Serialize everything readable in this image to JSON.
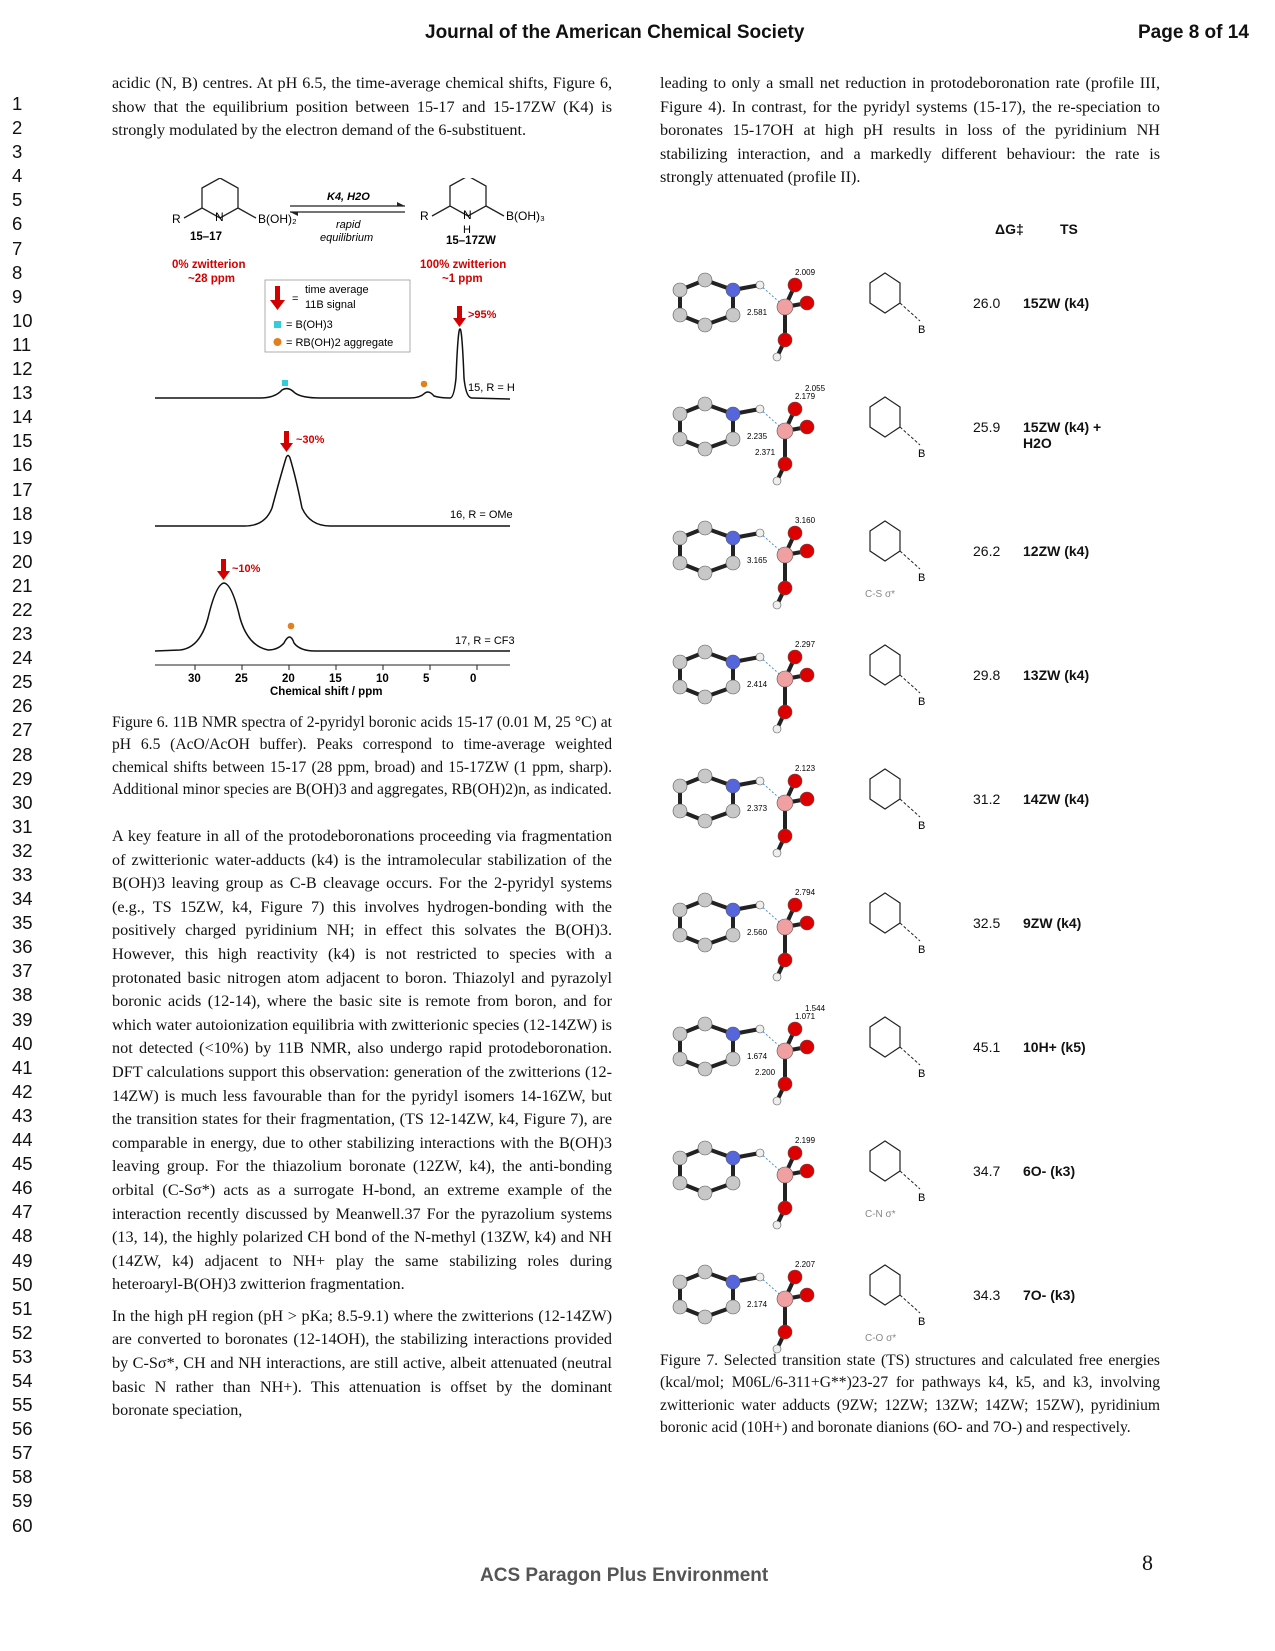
{
  "header": {
    "journal": "Journal of the American Chemical Society",
    "page_of": "Page 8 of 14"
  },
  "line_numbers": [
    "1",
    "2",
    "3",
    "4",
    "5",
    "6",
    "7",
    "8",
    "9",
    "10",
    "11",
    "12",
    "13",
    "14",
    "15",
    "16",
    "17",
    "18",
    "19",
    "20",
    "21",
    "22",
    "23",
    "24",
    "25",
    "26",
    "27",
    "28",
    "29",
    "30",
    "31",
    "32",
    "33",
    "34",
    "35",
    "36",
    "37",
    "38",
    "39",
    "40",
    "41",
    "42",
    "43",
    "44",
    "45",
    "46",
    "47",
    "48",
    "49",
    "50",
    "51",
    "52",
    "53",
    "54",
    "55",
    "56",
    "57",
    "58",
    "59",
    "60"
  ],
  "left": {
    "p_intro": "acidic (N, B) centres. At pH 6.5, the time-average chemical shifts, Figure 6, show that the equilibrium position between 15-17 and 15-17ZW (K4) is strongly modulated by the electron demand of the 6-substituent.",
    "fig6": {
      "k4_label": "K4, H2O",
      "rapid": "rapid",
      "equilibrium": "equilibrium",
      "left_cpd": "15–17",
      "right_cpd": "15–17ZW",
      "left_pct": "0% zwitterion",
      "left_ppm": "~28 ppm",
      "right_pct": "100% zwitterion",
      "right_ppm": "~1 ppm",
      "legend_time": "time average",
      "legend_signal": "11B signal",
      "legend_boh3": "= B(OH)3",
      "legend_agg": "= RB(OH)2 aggregate",
      "pct_95": ">95%",
      "pct_30": "~30%",
      "pct_10": "~10%",
      "trace1_label": "15, R = H",
      "trace2_label": "16, R = OMe",
      "trace3_label": "17, R = CF3",
      "x_ticks": [
        "30",
        "25",
        "20",
        "15",
        "10",
        "5",
        "0"
      ],
      "x_label": "Chemical shift / ppm",
      "colors": {
        "arrow": "#d40000",
        "boh3": "#33ccdd",
        "agg": "#e08020"
      }
    },
    "caption6": "Figure 6. 11B NMR spectra of 2-pyridyl boronic acids 15-17 (0.01 M, 25 °C) at pH 6.5 (AcO/AcOH buffer). Peaks correspond to time-average weighted chemical shifts between 15-17 (28 ppm, broad) and 15-17ZW (1 ppm, sharp). Additional minor species are B(OH)3 and aggregates, RB(OH)2)n, as indicated.",
    "p_key": "A key feature in all of the protodeboronations proceeding via fragmentation of zwitterionic water-adducts (k4) is the intramolecular stabilization of the B(OH)3 leaving group as C-B cleavage occurs. For the 2-pyridyl systems (e.g., TS 15ZW, k4, Figure 7) this involves hydrogen-bonding with the positively charged pyridinium NH; in effect this solvates the B(OH)3. However, this high reactivity (k4) is not restricted to species with a protonated basic nitrogen atom adjacent to boron. Thiazolyl and pyrazolyl boronic acids (12-14), where the basic site is remote from boron, and for which water autoionization equilibria with zwitterionic species (12-14ZW) is not detected (<10%) by 11B NMR, also undergo rapid protodeboronation. DFT calculations support this observation: generation of the zwitterions (12-14ZW) is much less favourable than for the pyridyl isomers 14-16ZW, but the transition states for their fragmentation, (TS 12-14ZW, k4, Figure 7), are comparable in energy, due to other stabilizing interactions with the B(OH)3 leaving group. For the thiazolium boronate (12ZW, k4), the anti-bonding orbital (C-Sσ*) acts as a surrogate H-bond, an extreme example of the interaction recently discussed by Meanwell.37 For the pyrazolium systems (13, 14), the highly polarized CH bond of the N-methyl (13ZW, k4) and NH (14ZW, k4) adjacent to NH+ play the same stabilizing roles during heteroaryl-B(OH)3 zwitterion fragmentation.",
    "p_high": "In the high pH region (pH > pKa; 8.5-9.1) where the zwitterions (12-14ZW) are converted to boronates (12-14OH), the stabilizing interactions provided by C-Sσ*, CH and NH interactions, are still active, albeit attenuated (neutral basic N rather than NH+). This attenuation is offset by the dominant boronate speciation,"
  },
  "right": {
    "p_top": "leading to only a small net reduction in protodeboronation rate (profile III, Figure 4). In contrast, for the pyridyl systems (15-17), the re-speciation to boronates 15-17OH at high pH results in loss of the pyridinium NH stabilizing interaction, and a markedly different behaviour: the rate is strongly attenuated (profile II).",
    "fig7": {
      "hdr_dg": "ΔG‡",
      "hdr_ts": "TS",
      "rows": [
        {
          "dg": "26.0",
          "ts": "15ZW (k4)",
          "d1": "2.009",
          "d2": "2.581",
          "d3": ""
        },
        {
          "dg": "25.9",
          "ts": "15ZW (k4) + H2O",
          "d1": "2.179",
          "d2": "2.235",
          "d3": "2.055",
          "d4": "2.371"
        },
        {
          "dg": "26.2",
          "ts": "12ZW (k4)",
          "d1": "3.160",
          "d2": "3.165",
          "note": "C-S σ*"
        },
        {
          "dg": "29.8",
          "ts": "13ZW (k4)",
          "d1": "2.297",
          "d2": "2.414"
        },
        {
          "dg": "31.2",
          "ts": "14ZW (k4)",
          "d1": "2.123",
          "d2": "2.373"
        },
        {
          "dg": "32.5",
          "ts": "9ZW (k4)",
          "d1": "2.794",
          "d2": "2.560"
        },
        {
          "dg": "45.1",
          "ts": "10H+ (k5)",
          "d1": "1.071",
          "d2": "1.674",
          "d3": "1.544",
          "d4": "2.200"
        },
        {
          "dg": "34.7",
          "ts": "6O- (k3)",
          "d1": "2.199",
          "note": "C-N σ*"
        },
        {
          "dg": "34.3",
          "ts": "7O- (k3)",
          "d1": "2.207",
          "d2": "2.174",
          "note": "C-O σ*"
        }
      ]
    },
    "caption7": "Figure 7. Selected transition state (TS) structures and calculated free energies (kcal/mol; M06L/6-311+G**)23-27 for pathways k4, k5, and k3, involving zwitterionic water adducts (9ZW; 12ZW; 13ZW; 14ZW; 15ZW), pyridinium boronic acid (10H+) and boronate dianions (6O- and 7O-) and respectively."
  },
  "footer": {
    "env": "ACS Paragon Plus Environment",
    "page": "8"
  }
}
